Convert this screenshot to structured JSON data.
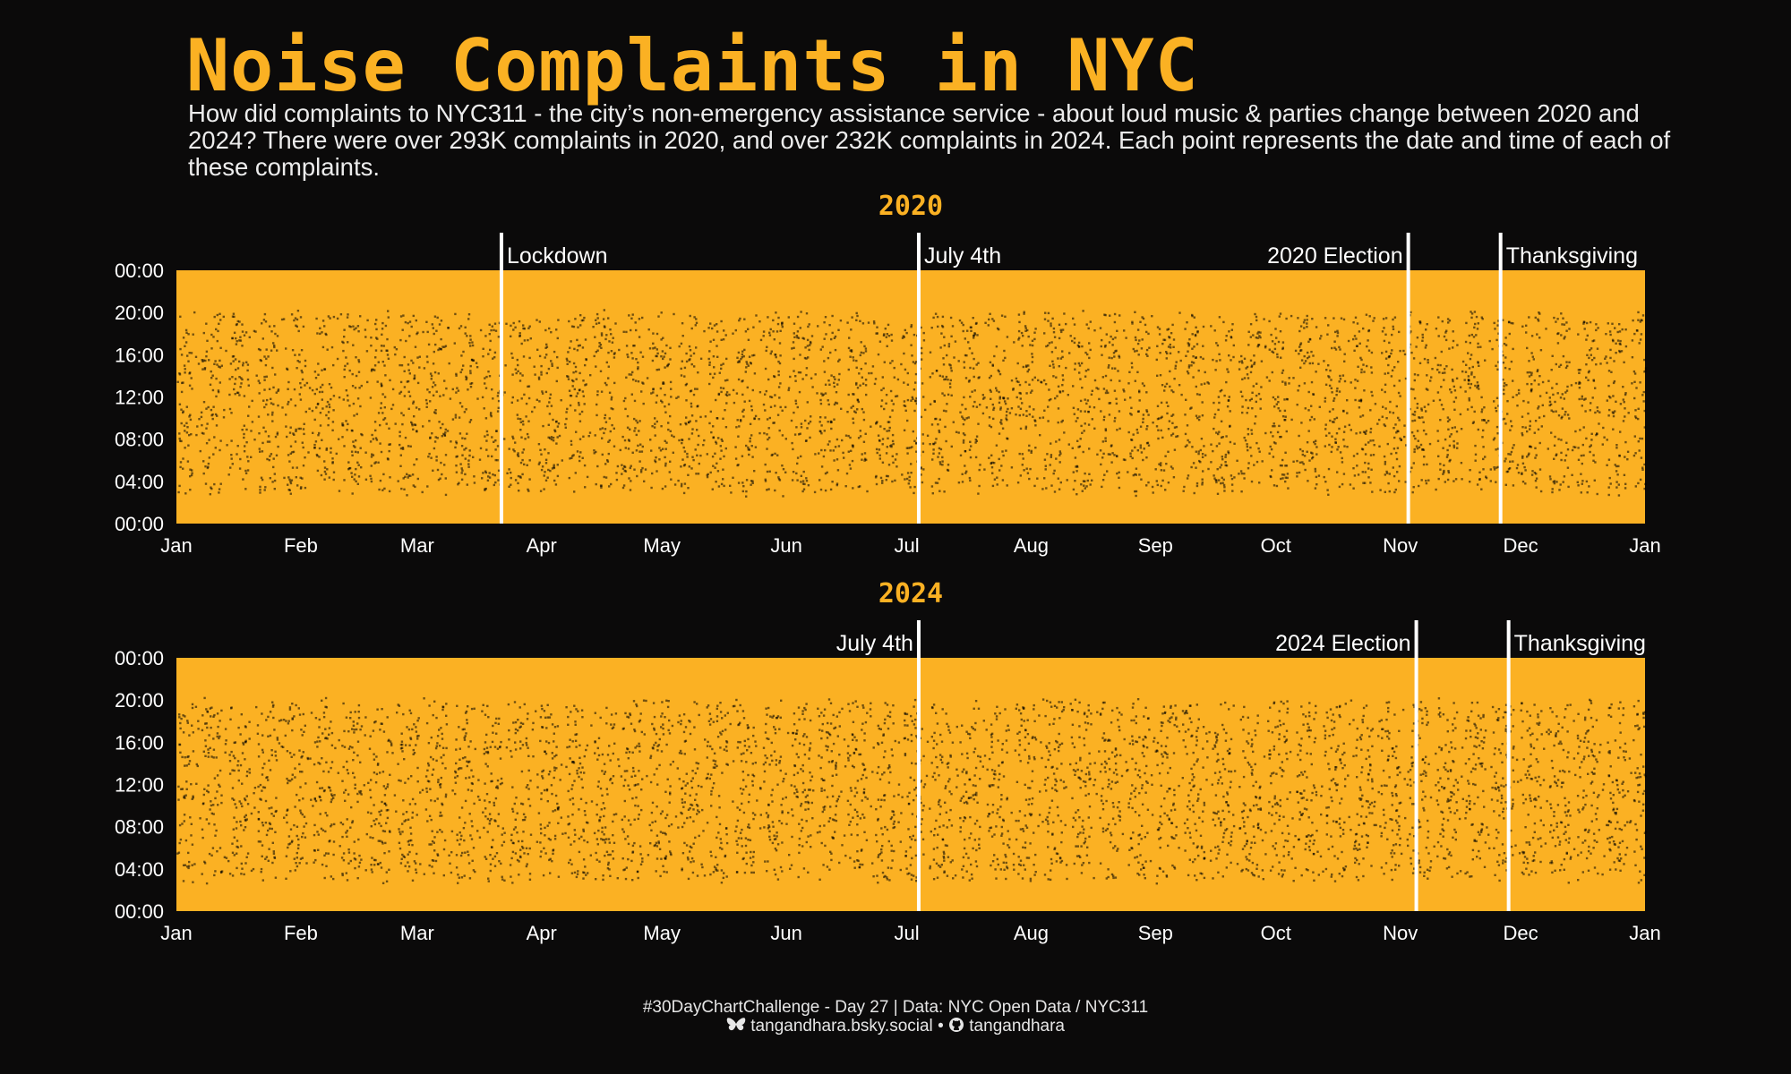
{
  "title": "Noise Complaints in NYC",
  "subtitle": "How did complaints to NYC311 - the city’s non-emergency assistance service - about loud music & parties change between 2020 and 2024? There were over 293K complaints in 2020, and over 232K complaints in 2024. Each point represents the date and time of each of these complaints.",
  "caption": {
    "line1": "#30DayChartChallenge - Day 27 | Data: NYC Open Data / NYC311",
    "bluesky_icon": "butterfly-icon",
    "bluesky": "tangandhara.bsky.social",
    "separator": "•",
    "github_icon": "github-icon",
    "github": "tangandhara"
  },
  "colors": {
    "background": "#0b0a0a",
    "accent": "#fbb123",
    "points": "#000000",
    "event_line": "#ffffff",
    "text": "#ffffff"
  },
  "chart_data": [
    {
      "type": "scatter",
      "title": "2020",
      "x_axis": "date",
      "y_axis": "time of day",
      "xlim": [
        "2020-01-01",
        "2021-01-01"
      ],
      "ylim": [
        "00:00",
        "24:00"
      ],
      "x_ticks": [
        "Jan",
        "Feb",
        "Mar",
        "Apr",
        "May",
        "Jun",
        "Jul",
        "Aug",
        "Sep",
        "Oct",
        "Nov",
        "Dec",
        "Jan"
      ],
      "y_ticks": [
        "00:00",
        "04:00",
        "08:00",
        "12:00",
        "16:00",
        "20:00",
        "00:00"
      ],
      "total_points_description": "over 293K complaints",
      "annotations": [
        {
          "label": "Lockdown",
          "date": "2020-03-22",
          "label_side": "right"
        },
        {
          "label": "July 4th",
          "date": "2020-07-04",
          "label_side": "right"
        },
        {
          "label": "2020 Election",
          "date": "2020-11-03",
          "label_side": "left"
        },
        {
          "label": "Thanksgiving",
          "date": "2020-11-26",
          "label_side": "right"
        }
      ]
    },
    {
      "type": "scatter",
      "title": "2024",
      "x_axis": "date",
      "y_axis": "time of day",
      "xlim": [
        "2024-01-01",
        "2025-01-01"
      ],
      "ylim": [
        "00:00",
        "24:00"
      ],
      "x_ticks": [
        "Jan",
        "Feb",
        "Mar",
        "Apr",
        "May",
        "Jun",
        "Jul",
        "Aug",
        "Sep",
        "Oct",
        "Nov",
        "Dec",
        "Jan"
      ],
      "y_ticks": [
        "00:00",
        "04:00",
        "08:00",
        "12:00",
        "16:00",
        "20:00",
        "00:00"
      ],
      "total_points_description": "over 232K complaints",
      "annotations": [
        {
          "label": "July 4th",
          "date": "2024-07-04",
          "label_side": "left"
        },
        {
          "label": "2024 Election",
          "date": "2024-11-05",
          "label_side": "left"
        },
        {
          "label": "Thanksgiving",
          "date": "2024-11-28",
          "label_side": "right"
        }
      ]
    }
  ]
}
